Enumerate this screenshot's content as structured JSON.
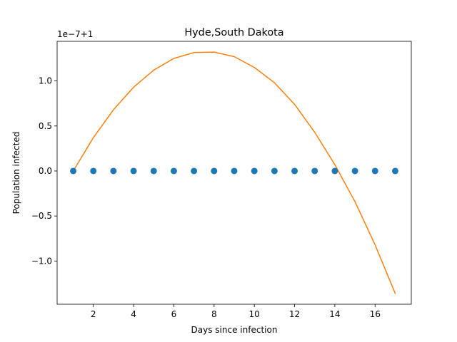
{
  "chart_data": {
    "type": "line",
    "title": "Hyde,South Dakota",
    "xlabel": "Days since infection",
    "ylabel": "Population infected",
    "offset_label": "1e−7+1",
    "xlim": [
      0.2,
      17.8
    ],
    "ylim": [
      -1.48,
      1.44
    ],
    "grid": false,
    "x_ticks": [
      2,
      4,
      6,
      8,
      10,
      12,
      14,
      16
    ],
    "y_ticks": [
      {
        "value": 1.0,
        "label": "1.0"
      },
      {
        "value": 0.5,
        "label": "0.5"
      },
      {
        "value": 0.0,
        "label": "0.0"
      },
      {
        "value": -0.5,
        "label": "−0.5"
      },
      {
        "value": -1.0,
        "label": "−1.0"
      }
    ],
    "series": [
      {
        "kind": "scatter",
        "color": "#1f77b4",
        "x": [
          1,
          2,
          3,
          4,
          5,
          6,
          7,
          8,
          9,
          10,
          11,
          12,
          13,
          14,
          15,
          16,
          17
        ],
        "y": [
          0,
          0,
          0,
          0,
          0,
          0,
          0,
          0,
          0,
          0,
          0,
          0,
          0,
          0,
          0,
          0,
          0
        ]
      },
      {
        "kind": "line",
        "color": "#ff7f0e",
        "x": [
          1,
          2,
          3,
          4,
          5,
          6,
          7,
          8,
          9,
          10,
          11,
          12,
          13,
          14,
          15,
          16,
          17
        ],
        "y": [
          0.0,
          0.37,
          0.68,
          0.93,
          1.12,
          1.25,
          1.315,
          1.32,
          1.27,
          1.15,
          0.98,
          0.74,
          0.43,
          0.07,
          -0.34,
          -0.82,
          -1.36
        ]
      }
    ]
  }
}
